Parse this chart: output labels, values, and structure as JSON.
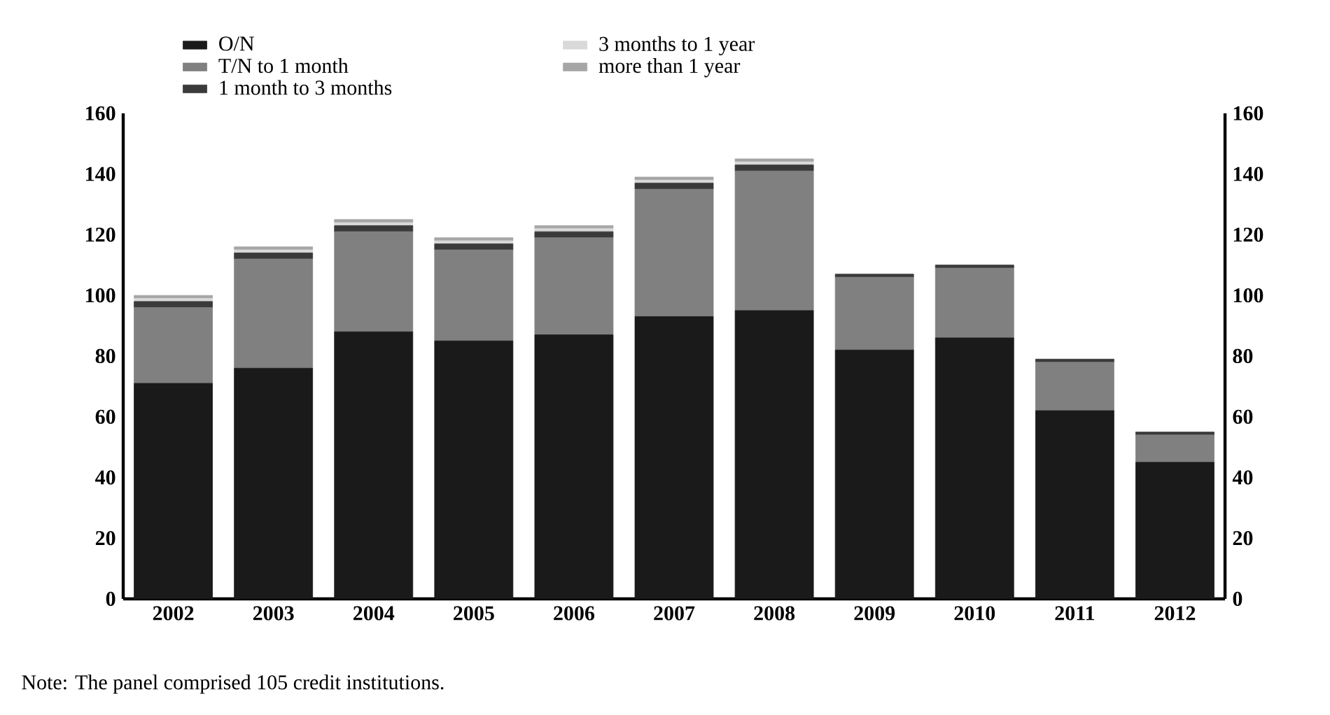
{
  "chart_data": {
    "type": "bar",
    "stacked": true,
    "categories": [
      "2002",
      "2003",
      "2004",
      "2005",
      "2006",
      "2007",
      "2008",
      "2009",
      "2010",
      "2011",
      "2012"
    ],
    "series": [
      {
        "name": "O/N",
        "color": "#1a1a1a",
        "values": [
          71,
          76,
          88,
          85,
          87,
          93,
          95,
          82,
          86,
          62,
          45
        ]
      },
      {
        "name": "T/N to 1 month",
        "color": "#808080",
        "values": [
          25,
          36,
          33,
          30,
          32,
          42,
          46,
          24,
          23,
          16,
          9
        ]
      },
      {
        "name": "1 month to 3 months",
        "color": "#3a3a3a",
        "values": [
          2,
          2,
          2,
          2,
          2,
          2,
          2,
          1,
          1,
          1,
          1
        ]
      },
      {
        "name": "3 months to 1 year",
        "color": "#d9d9d9",
        "values": [
          1,
          1,
          1,
          1,
          1,
          1,
          1,
          0,
          0,
          0,
          0
        ]
      },
      {
        "name": "more than 1 year",
        "color": "#a6a6a6",
        "values": [
          1,
          1,
          1,
          1,
          1,
          1,
          1,
          0,
          0,
          0,
          0
        ]
      }
    ],
    "ylim": [
      0,
      160
    ],
    "yticks": [
      0,
      20,
      40,
      60,
      80,
      100,
      120,
      140,
      160
    ],
    "y2lim": [
      0,
      160
    ],
    "y2ticks": [
      0,
      20,
      40,
      60,
      80,
      100,
      120,
      140,
      160
    ],
    "legend": "top left",
    "grid": false,
    "annotations": [
      "Note: The panel comprised 105 credit institutions."
    ]
  }
}
